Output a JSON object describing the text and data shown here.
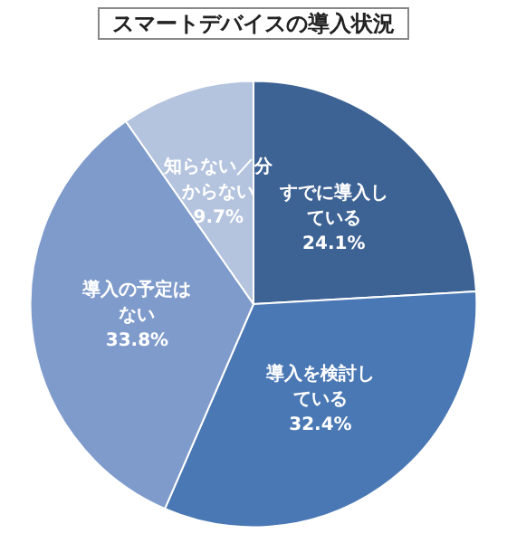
{
  "chart_data": {
    "type": "pie",
    "title": "スマートデバイスの導入状況",
    "categories": [
      "すでに導入している",
      "導入を検討している",
      "導入の予定はない",
      "知らない／分からない"
    ],
    "values": [
      24.1,
      32.4,
      33.8,
      9.7
    ],
    "colors": [
      "#3d6294",
      "#4a78b4",
      "#7f9bcb",
      "#b4c3de"
    ],
    "value_labels": [
      "24.1%",
      "32.4%",
      "33.8%",
      "9.7%"
    ],
    "legend": false
  }
}
